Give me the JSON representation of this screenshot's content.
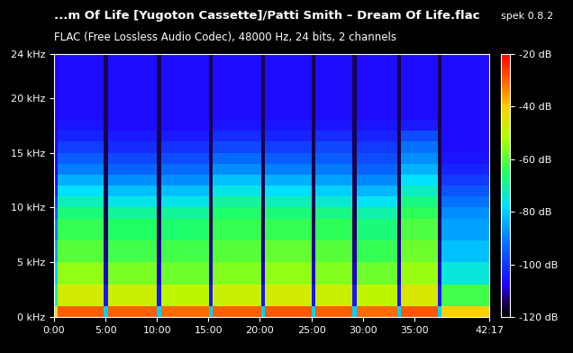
{
  "chart_data": {
    "type": "heatmap",
    "title": "...m Of Life [Yugoton Cassette]/Patti Smith – Dream Of Life.flac",
    "subtitle": "FLAC (Free Lossless Audio Codec), 48000 Hz, 24 bits, 2 channels",
    "annotation": "spek 0.8.2",
    "xlim": [
      0,
      2537
    ],
    "ylim": [
      0,
      24
    ],
    "xticks": [
      {
        "value": 0,
        "label": "0:00"
      },
      {
        "value": 300,
        "label": "5:00"
      },
      {
        "value": 600,
        "label": "10:00"
      },
      {
        "value": 900,
        "label": "15:00"
      },
      {
        "value": 1200,
        "label": "20:00"
      },
      {
        "value": 1500,
        "label": "25:00"
      },
      {
        "value": 1800,
        "label": "30:00"
      },
      {
        "value": 2100,
        "label": "35:00"
      },
      {
        "value": 2537,
        "label": "42:17"
      }
    ],
    "yticks": [
      {
        "value": 0,
        "label": "0 kHz"
      },
      {
        "value": 5,
        "label": "5 kHz"
      },
      {
        "value": 10,
        "label": "10 kHz"
      },
      {
        "value": 15,
        "label": "15 kHz"
      },
      {
        "value": 20,
        "label": "20 kHz"
      },
      {
        "value": 24,
        "label": "24 kHz"
      }
    ],
    "x_edges": [
      0,
      20,
      290,
      315,
      600,
      625,
      905,
      925,
      1210,
      1230,
      1500,
      1525,
      1740,
      1765,
      2000,
      2020,
      2240,
      2260,
      2537
    ],
    "y_edges": [
      0,
      1,
      3,
      5,
      7,
      9,
      10,
      11,
      12,
      13,
      14,
      15,
      16,
      17,
      18,
      20,
      22,
      24
    ],
    "cells": [
      [
        -45,
        -70,
        -80,
        -85,
        -90,
        -95,
        -100,
        -104,
        -106,
        -108,
        -108,
        -108,
        -108,
        -108,
        -108,
        -108,
        -108
      ],
      [
        -30,
        -47,
        -55,
        -60,
        -63,
        -67,
        -72,
        -78,
        -84,
        -90,
        -95,
        -99,
        -103,
        -105,
        -106,
        -106,
        -106
      ],
      [
        -80,
        -105,
        -110,
        -112,
        -114,
        -115,
        -115,
        -115,
        -115,
        -115,
        -115,
        -115,
        -115,
        -115,
        -115,
        -115,
        -115
      ],
      [
        -30,
        -48,
        -57,
        -62,
        -65,
        -70,
        -76,
        -82,
        -88,
        -94,
        -98,
        -102,
        -104,
        -106,
        -106,
        -106,
        -106
      ],
      [
        -80,
        -105,
        -110,
        -112,
        -114,
        -115,
        -115,
        -115,
        -115,
        -115,
        -115,
        -115,
        -115,
        -115,
        -115,
        -115,
        -115
      ],
      [
        -31,
        -50,
        -58,
        -62,
        -66,
        -70,
        -76,
        -82,
        -88,
        -93,
        -97,
        -101,
        -104,
        -106,
        -106,
        -106,
        -106
      ],
      [
        -80,
        -105,
        -110,
        -112,
        -114,
        -115,
        -115,
        -115,
        -115,
        -115,
        -115,
        -115,
        -115,
        -115,
        -115,
        -115,
        -115
      ],
      [
        -30,
        -48,
        -56,
        -60,
        -63,
        -66,
        -70,
        -76,
        -82,
        -88,
        -93,
        -98,
        -102,
        -105,
        -106,
        -106,
        -106
      ],
      [
        -80,
        -105,
        -110,
        -112,
        -114,
        -115,
        -115,
        -115,
        -115,
        -115,
        -115,
        -115,
        -115,
        -115,
        -115,
        -115,
        -115
      ],
      [
        -29,
        -47,
        -55,
        -59,
        -63,
        -67,
        -72,
        -78,
        -84,
        -90,
        -95,
        -99,
        -103,
        -105,
        -106,
        -106,
        -106
      ],
      [
        -80,
        -105,
        -110,
        -112,
        -114,
        -115,
        -115,
        -115,
        -115,
        -115,
        -115,
        -115,
        -115,
        -115,
        -115,
        -115,
        -115
      ],
      [
        -30,
        -48,
        -56,
        -60,
        -64,
        -68,
        -74,
        -80,
        -86,
        -91,
        -95,
        -98,
        -102,
        -105,
        -106,
        -106,
        -106
      ],
      [
        -80,
        -105,
        -110,
        -112,
        -114,
        -115,
        -115,
        -115,
        -115,
        -115,
        -115,
        -115,
        -115,
        -115,
        -115,
        -115,
        -115
      ],
      [
        -31,
        -50,
        -58,
        -63,
        -67,
        -71,
        -77,
        -83,
        -89,
        -94,
        -97,
        -100,
        -103,
        -105,
        -106,
        -106,
        -106
      ],
      [
        -80,
        -105,
        -110,
        -112,
        -114,
        -115,
        -115,
        -115,
        -115,
        -115,
        -115,
        -115,
        -115,
        -115,
        -115,
        -115,
        -115
      ],
      [
        -29,
        -46,
        -54,
        -58,
        -61,
        -64,
        -68,
        -73,
        -78,
        -84,
        -88,
        -92,
        -97,
        -104,
        -106,
        -106,
        -106
      ],
      [
        -80,
        -105,
        -110,
        -112,
        -114,
        -115,
        -115,
        -115,
        -115,
        -115,
        -115,
        -115,
        -115,
        -115,
        -115,
        -115,
        -115
      ],
      [
        -40,
        -62,
        -75,
        -82,
        -86,
        -88,
        -92,
        -96,
        -100,
        -103,
        -105,
        -106,
        -106,
        -106,
        -106,
        -106,
        -106
      ]
    ],
    "colorbar": {
      "range": [
        -120,
        -20
      ],
      "ticks": [
        {
          "value": -20,
          "label": "-20 dB"
        },
        {
          "value": -40,
          "label": "-40 dB"
        },
        {
          "value": -60,
          "label": "-60 dB"
        },
        {
          "value": -80,
          "label": "-80 dB"
        },
        {
          "value": -100,
          "label": "-100 dB"
        },
        {
          "value": -120,
          "label": "-120 dB"
        }
      ]
    }
  }
}
